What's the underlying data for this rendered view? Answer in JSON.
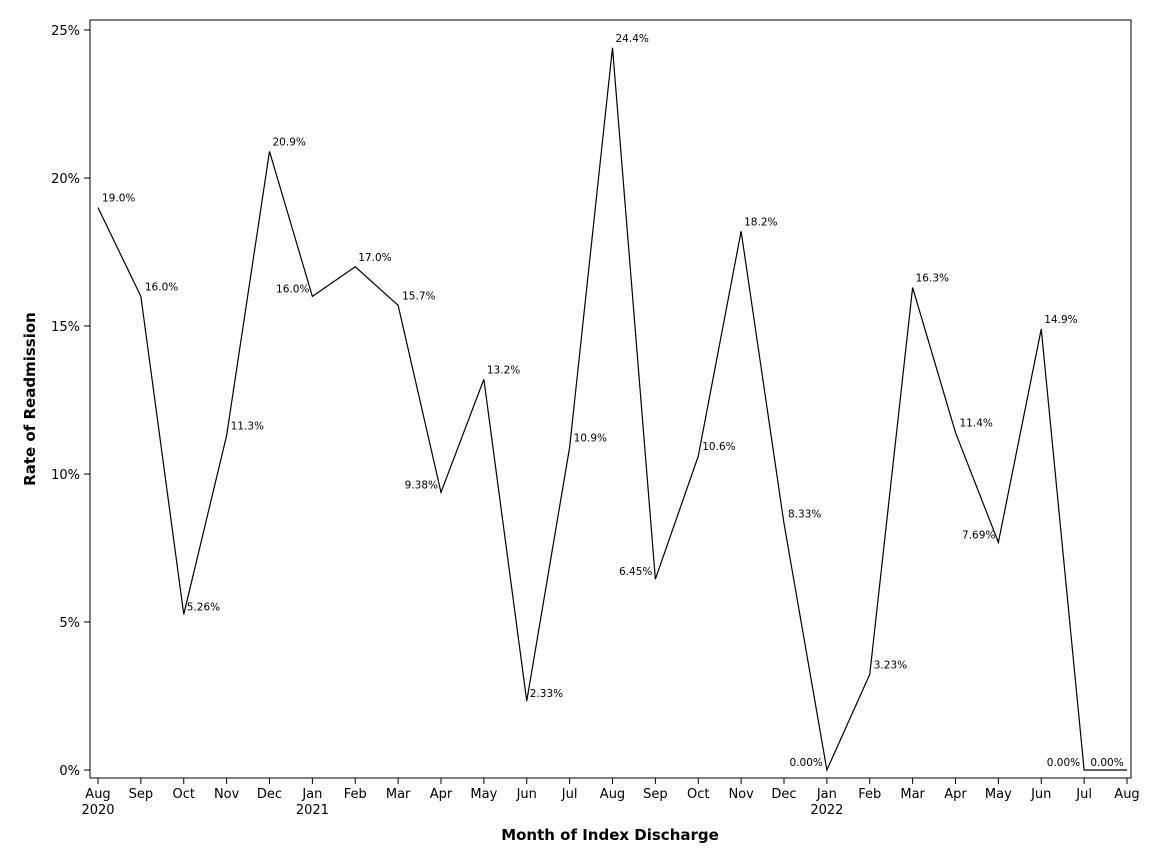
{
  "chart_data": {
    "type": "line",
    "title": "",
    "xlabel": "Month of Index Discharge",
    "ylabel": "Rate of Readmission",
    "ylim": [
      0,
      25
    ],
    "yticks": [
      0,
      5,
      10,
      15,
      20,
      25
    ],
    "ytick_labels": [
      "0%",
      "5%",
      "10%",
      "15%",
      "20%",
      "25%"
    ],
    "grid": false,
    "legend": "none",
    "line_color": "#000000",
    "x": [
      "Aug 2020",
      "Sep 2020",
      "Oct 2020",
      "Nov 2020",
      "Dec 2020",
      "Jan 2021",
      "Feb 2021",
      "Mar 2021",
      "Apr 2021",
      "May 2021",
      "Jun 2021",
      "Jul 2021",
      "Aug 2021",
      "Sep 2021",
      "Oct 2021",
      "Nov 2021",
      "Dec 2021",
      "Jan 2022",
      "Feb 2022",
      "Mar 2022",
      "Apr 2022",
      "May 2022",
      "Jun 2022",
      "Jul 2022",
      "Aug 2022"
    ],
    "tick_months": [
      "Aug",
      "Sep",
      "Oct",
      "Nov",
      "Dec",
      "Jan",
      "Feb",
      "Mar",
      "Apr",
      "May",
      "Jun",
      "Jul",
      "Aug",
      "Sep",
      "Oct",
      "Nov",
      "Dec",
      "Jan",
      "Feb",
      "Mar",
      "Apr",
      "May",
      "Jun",
      "Jul",
      "Aug"
    ],
    "tick_years": [
      "2020",
      "",
      "",
      "",
      "",
      "2021",
      "",
      "",
      "",
      "",
      "",
      "",
      "",
      "",
      "",
      "",
      "",
      "2022",
      "",
      "",
      "",
      "",
      "",
      "",
      ""
    ],
    "values": [
      19.0,
      16.0,
      5.26,
      11.3,
      20.9,
      16.0,
      17.0,
      15.7,
      9.38,
      13.2,
      2.33,
      10.9,
      24.4,
      6.45,
      10.6,
      18.2,
      8.33,
      0.0,
      3.23,
      16.3,
      11.4,
      7.69,
      14.9,
      0.0,
      0.0
    ],
    "value_labels": [
      "19.0%",
      "16.0%",
      "5.26%",
      "11.3%",
      "20.9%",
      "16.0%",
      "17.0%",
      "15.7%",
      "9.38%",
      "13.2%",
      "2.33%",
      "10.9%",
      "24.4%",
      "6.45%",
      "10.6%",
      "18.2%",
      "8.33%",
      "0.00%",
      "3.23%",
      "16.3%",
      "11.4%",
      "7.69%",
      "14.9%",
      "0.00%",
      "0.00%"
    ]
  }
}
